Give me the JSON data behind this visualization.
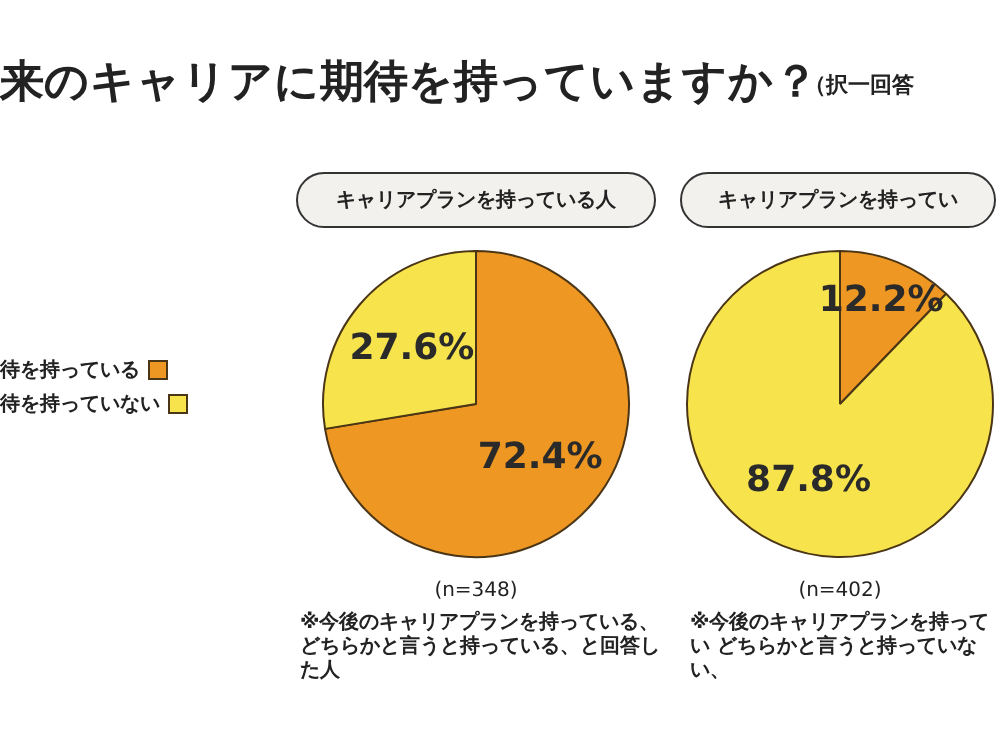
{
  "chart_data": [
    {
      "type": "pie",
      "title": "来のキャリアに期待を持っていますか？",
      "legend": "left",
      "xlabel": "キャリアプランを持っている人",
      "categories": [
        "待を持っている",
        "待を持っていない"
      ],
      "values": [
        72.4,
        27.6
      ],
      "colors": [
        "#ee9722",
        "#f7e34b"
      ],
      "value_labels": [
        "72.4%",
        "27.6%"
      ],
      "annotations": [
        "(n=348)",
        "※今後のキャリアプランを持っている、どちらかと言うと持っている、と回答した人"
      ]
    },
    {
      "type": "pie",
      "subtitle": "（択一回答",
      "xlabel": "キャリアプランを持ってい",
      "categories": [
        null,
        null
      ],
      "values": [
        12.2,
        87.8
      ],
      "colors": [
        "#ee9722",
        "#f7e34b"
      ],
      "value_labels": [
        "12.2%",
        "87.8%"
      ],
      "annotations": [
        "(n=402)",
        "※今後のキャリアプランを持ってい どちらかと言うと持っていない、"
      ]
    }
  ]
}
